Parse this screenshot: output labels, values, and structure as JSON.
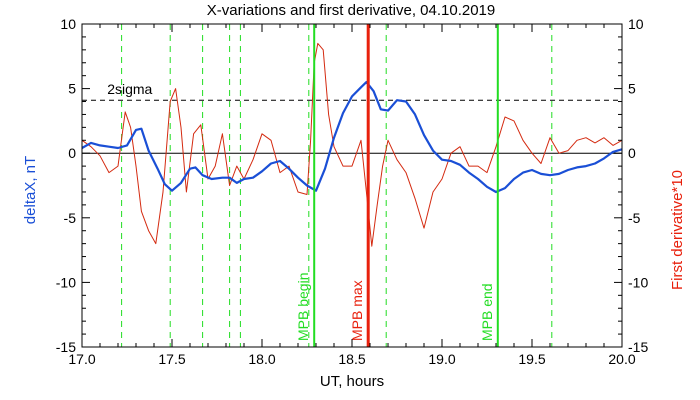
{
  "chart_data": {
    "type": "line",
    "title": "X-variations and first derivative, 04.10.2019",
    "xlabel": "UT, hours",
    "ylabel_left": "deltaX, nT",
    "ylabel_right": "First derivative*10",
    "xlim": [
      17.0,
      20.0
    ],
    "ylim": [
      -15,
      10
    ],
    "x_ticks": [
      17.0,
      17.5,
      18.0,
      18.5,
      19.0,
      19.5,
      20.0
    ],
    "x_tick_labels": [
      "17.0",
      "17.5",
      "18.0",
      "18.5",
      "19.0",
      "19.5",
      "20.0"
    ],
    "y_ticks": [
      -15,
      -10,
      -5,
      0,
      5,
      10
    ],
    "y_tick_labels_left": [
      "-15",
      "-10",
      "-5",
      "0",
      "5",
      "10"
    ],
    "y_tick_labels_right": [
      "-15",
      "-10",
      "-5",
      "0",
      "5",
      "10"
    ],
    "colors": {
      "deltaX": "#1a4fd6",
      "derivative": "#d42a10",
      "markers": "#22dd22",
      "mpb_max": "#e8200c",
      "left_axis_label": "#1a4fd6",
      "right_axis_label": "#e8200c"
    },
    "sigma_level": 4.1,
    "sigma_label": "2sigma",
    "zero_line": 0,
    "dashed_verticals": [
      17.22,
      17.49,
      17.67,
      17.82,
      17.88,
      18.26,
      18.69,
      19.61
    ],
    "solid_markers": [
      {
        "x": 18.29,
        "label": "MPB begin",
        "kind": "green"
      },
      {
        "x": 18.59,
        "label": "MPB max",
        "kind": "red"
      },
      {
        "x": 19.31,
        "label": "MPB end",
        "kind": "green"
      }
    ],
    "series": [
      {
        "name": "deltaX",
        "x": [
          17.0,
          17.05,
          17.1,
          17.15,
          17.2,
          17.25,
          17.3,
          17.33,
          17.37,
          17.42,
          17.46,
          17.5,
          17.55,
          17.6,
          17.63,
          17.67,
          17.72,
          17.78,
          17.82,
          17.86,
          17.9,
          17.95,
          18.0,
          18.05,
          18.1,
          18.15,
          18.2,
          18.25,
          18.3,
          18.35,
          18.4,
          18.45,
          18.5,
          18.55,
          18.58,
          18.62,
          18.66,
          18.7,
          18.75,
          18.8,
          18.85,
          18.9,
          18.95,
          19.0,
          19.05,
          19.1,
          19.15,
          19.2,
          19.25,
          19.3,
          19.35,
          19.4,
          19.45,
          19.5,
          19.55,
          19.6,
          19.65,
          19.7,
          19.75,
          19.8,
          19.85,
          19.9,
          19.95,
          20.0
        ],
        "y": [
          0.4,
          0.8,
          0.6,
          0.5,
          0.4,
          0.6,
          1.8,
          1.9,
          0.2,
          -1.2,
          -2.4,
          -2.9,
          -2.3,
          -1.2,
          -1.1,
          -1.7,
          -2.0,
          -1.9,
          -1.9,
          -2.3,
          -2.0,
          -1.9,
          -1.4,
          -0.8,
          -0.6,
          -1.2,
          -1.9,
          -2.5,
          -2.9,
          -1.2,
          1.2,
          3.1,
          4.4,
          5.1,
          5.5,
          4.8,
          3.4,
          3.3,
          4.1,
          4.0,
          3.0,
          1.4,
          0.2,
          -0.5,
          -0.6,
          -0.9,
          -1.5,
          -2.0,
          -2.6,
          -3.0,
          -2.7,
          -2.0,
          -1.5,
          -1.3,
          -1.6,
          -1.7,
          -1.6,
          -1.3,
          -1.1,
          -1.0,
          -0.8,
          -0.4,
          0.1,
          0.3
        ]
      },
      {
        "name": "First derivative*10",
        "x": [
          17.0,
          17.05,
          17.1,
          17.15,
          17.2,
          17.24,
          17.27,
          17.3,
          17.33,
          17.37,
          17.41,
          17.45,
          17.49,
          17.52,
          17.55,
          17.58,
          17.62,
          17.66,
          17.7,
          17.74,
          17.78,
          17.82,
          17.86,
          17.9,
          17.95,
          18.0,
          18.05,
          18.1,
          18.15,
          18.2,
          18.25,
          18.27,
          18.29,
          18.31,
          18.34,
          18.37,
          18.4,
          18.45,
          18.5,
          18.55,
          18.58,
          18.61,
          18.64,
          18.67,
          18.7,
          18.75,
          18.8,
          18.85,
          18.9,
          18.95,
          19.0,
          19.05,
          19.1,
          19.15,
          19.2,
          19.25,
          19.3,
          19.35,
          19.4,
          19.45,
          19.5,
          19.55,
          19.6,
          19.65,
          19.7,
          19.75,
          19.8,
          19.85,
          19.9,
          19.95,
          20.0
        ],
        "y": [
          1.0,
          0.5,
          -0.2,
          -1.5,
          -1.0,
          3.2,
          2.0,
          -1.0,
          -4.5,
          -6.0,
          -7.0,
          -3.0,
          4.0,
          5.0,
          2.0,
          -3.0,
          1.5,
          2.2,
          -2.0,
          -1.0,
          1.5,
          -2.5,
          -1.0,
          -2.0,
          -0.5,
          1.5,
          1.0,
          -1.5,
          -1.0,
          -3.0,
          -3.2,
          1.0,
          7.0,
          8.5,
          8.0,
          3.0,
          0.5,
          -1.0,
          -1.0,
          1.0,
          -3.0,
          -7.2,
          -4.0,
          -1.0,
          1.0,
          -0.5,
          -1.5,
          -3.5,
          -5.8,
          -3.0,
          -2.0,
          0.0,
          0.5,
          -1.0,
          -1.0,
          -1.5,
          0.5,
          2.8,
          2.5,
          1.0,
          0.0,
          -0.8,
          1.2,
          0.0,
          0.2,
          1.0,
          1.2,
          0.8,
          1.2,
          0.6,
          1.0
        ]
      }
    ]
  }
}
